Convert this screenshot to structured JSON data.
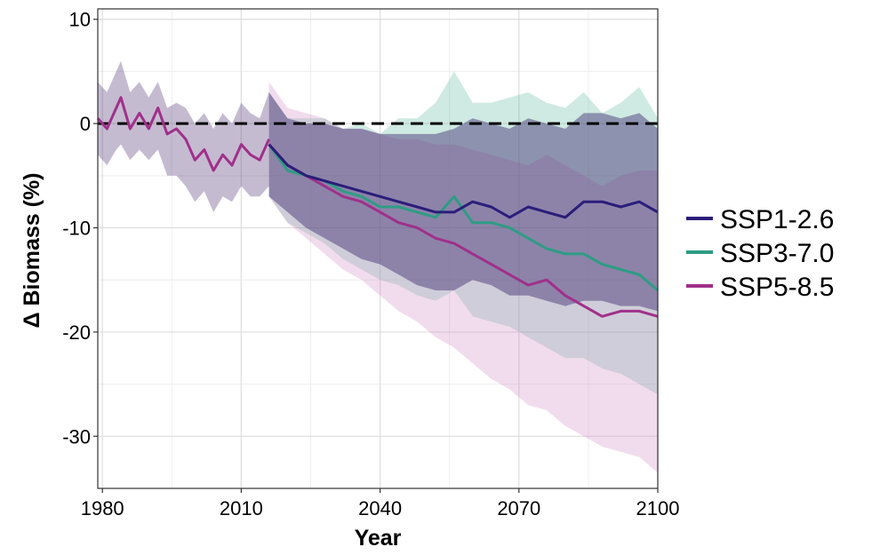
{
  "chart_data": {
    "type": "line",
    "title": "",
    "xlabel": "Year",
    "ylabel": "Δ Biomass (%)",
    "xlim": [
      1979,
      2100
    ],
    "ylim": [
      -35,
      11
    ],
    "xticks": [
      1980,
      2010,
      2040,
      2070,
      2100
    ],
    "yticks": [
      10,
      0,
      -10,
      -20,
      -30
    ],
    "xtick_labels": [
      "1980",
      "2010",
      "2040",
      "2070",
      "2100"
    ],
    "ytick_labels": [
      "10",
      "0",
      "-10",
      "-20",
      "-30"
    ],
    "grid": true,
    "legend_position": "right",
    "reference_line": {
      "y": 0,
      "style": "dashed",
      "color": "#000000"
    },
    "historical": {
      "x": [
        1979,
        1981,
        1983,
        1984,
        1986,
        1988,
        1990,
        1992,
        1994,
        1996,
        1998,
        2000,
        2002,
        2004,
        2006,
        2008,
        2010,
        2012,
        2014,
        2016
      ],
      "values": [
        0.5,
        -0.5,
        1.5,
        2.5,
        -0.5,
        1.0,
        -0.5,
        1.5,
        -1.0,
        -0.5,
        -1.5,
        -3.5,
        -2.5,
        -4.5,
        -3.0,
        -4.0,
        -2.0,
        -3.0,
        -3.5,
        -1.5
      ],
      "lower": [
        -3.0,
        -4.0,
        -2.5,
        -2.0,
        -3.5,
        -2.5,
        -3.5,
        -2.5,
        -5.0,
        -5.0,
        -6.0,
        -7.5,
        -6.5,
        -8.5,
        -7.0,
        -7.5,
        -6.0,
        -7.0,
        -7.0,
        -6.0
      ],
      "upper": [
        4.0,
        3.0,
        5.0,
        6.0,
        3.0,
        4.0,
        2.5,
        4.0,
        1.5,
        2.0,
        1.5,
        0.0,
        1.0,
        -0.5,
        1.0,
        0.0,
        2.0,
        1.0,
        0.5,
        3.0
      ]
    },
    "series": [
      {
        "name": "SSP1-2.6",
        "color": "#2b1d7a",
        "band_color": "#3b2a6e",
        "x": [
          2016,
          2020,
          2024,
          2028,
          2032,
          2036,
          2040,
          2044,
          2048,
          2052,
          2056,
          2060,
          2064,
          2068,
          2072,
          2076,
          2080,
          2084,
          2088,
          2092,
          2096,
          2100
        ],
        "values": [
          -2.0,
          -4.0,
          -5.0,
          -5.5,
          -6.0,
          -6.5,
          -7.0,
          -7.5,
          -8.0,
          -8.5,
          -8.5,
          -7.5,
          -8.0,
          -9.0,
          -8.0,
          -8.5,
          -9.0,
          -7.5,
          -7.5,
          -8.0,
          -7.5,
          -8.5
        ],
        "lower": [
          -7.0,
          -8.5,
          -10.0,
          -11.0,
          -12.0,
          -13.0,
          -13.5,
          -14.5,
          -15.5,
          -16.0,
          -16.0,
          -15.0,
          -15.5,
          -16.5,
          -16.5,
          -17.0,
          -17.5,
          -17.0,
          -17.0,
          -17.5,
          -17.5,
          -18.0
        ],
        "upper": [
          3.0,
          0.5,
          0.0,
          0.0,
          -0.5,
          -0.5,
          -1.0,
          -1.0,
          -1.0,
          -1.0,
          -0.5,
          0.5,
          0.0,
          -0.5,
          0.5,
          0.0,
          -0.5,
          1.0,
          1.0,
          0.5,
          1.0,
          -0.5
        ]
      },
      {
        "name": "SSP3-7.0",
        "color": "#2e9c84",
        "band_color": "#5fb8a0",
        "x": [
          2016,
          2020,
          2024,
          2028,
          2032,
          2036,
          2040,
          2044,
          2048,
          2052,
          2056,
          2060,
          2064,
          2068,
          2072,
          2076,
          2080,
          2084,
          2088,
          2092,
          2096,
          2100
        ],
        "values": [
          -2.0,
          -4.5,
          -5.0,
          -5.5,
          -6.5,
          -7.0,
          -8.0,
          -8.0,
          -8.5,
          -9.0,
          -7.0,
          -9.5,
          -9.5,
          -10.0,
          -11.0,
          -12.0,
          -12.5,
          -12.5,
          -13.5,
          -14.0,
          -14.5,
          -16.0
        ],
        "lower": [
          -7.0,
          -9.5,
          -10.5,
          -11.5,
          -13.0,
          -14.0,
          -15.0,
          -15.5,
          -16.5,
          -17.0,
          -16.0,
          -18.5,
          -19.0,
          -19.5,
          -20.5,
          -21.5,
          -22.5,
          -22.5,
          -23.5,
          -24.0,
          -25.0,
          -26.0
        ],
        "upper": [
          3.0,
          0.5,
          0.5,
          0.5,
          -0.5,
          0.0,
          -1.0,
          0.5,
          0.5,
          2.0,
          5.0,
          2.0,
          2.0,
          2.5,
          3.0,
          2.0,
          1.5,
          3.0,
          1.0,
          2.0,
          3.5,
          0.5
        ]
      },
      {
        "name": "SSP5-8.5",
        "color": "#a0308a",
        "band_color": "#d08ac4",
        "x": [
          2016,
          2020,
          2024,
          2028,
          2032,
          2036,
          2040,
          2044,
          2048,
          2052,
          2056,
          2060,
          2064,
          2068,
          2072,
          2076,
          2080,
          2084,
          2088,
          2092,
          2096,
          2100
        ],
        "values": [
          -2.0,
          -4.0,
          -5.0,
          -6.0,
          -7.0,
          -7.5,
          -8.5,
          -9.5,
          -10.0,
          -11.0,
          -11.5,
          -12.5,
          -13.5,
          -14.5,
          -15.5,
          -15.0,
          -16.5,
          -17.5,
          -18.5,
          -18.0,
          -18.0,
          -18.5
        ],
        "lower": [
          -7.0,
          -9.5,
          -11.0,
          -12.5,
          -14.0,
          -15.0,
          -16.5,
          -18.0,
          -19.0,
          -20.5,
          -21.5,
          -23.0,
          -24.5,
          -25.5,
          -27.0,
          -27.5,
          -29.0,
          -30.0,
          -31.0,
          -31.5,
          -32.0,
          -33.5
        ],
        "upper": [
          4.0,
          1.5,
          1.0,
          0.5,
          -0.5,
          -0.5,
          -1.0,
          -1.5,
          -1.5,
          -2.0,
          -2.0,
          -2.5,
          -3.0,
          -3.5,
          -4.0,
          -3.0,
          -4.0,
          -5.0,
          -6.0,
          -5.0,
          -4.5,
          -4.5
        ]
      }
    ]
  }
}
